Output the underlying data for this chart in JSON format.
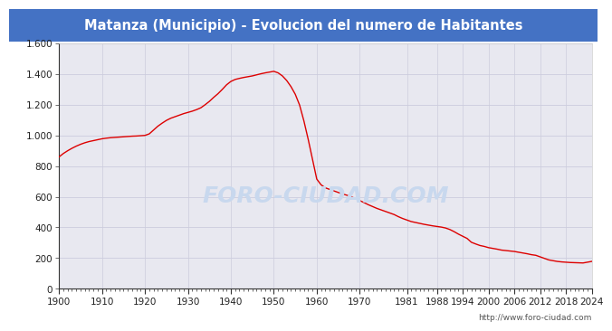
{
  "title": "Matanza (Municipio) - Evolucion del numero de Habitantes",
  "title_bg_color": "#4472c4",
  "title_text_color": "#ffffff",
  "plot_bg_color": "#e8e8f0",
  "line_color": "#dd0000",
  "footer_text": "http://www.foro-ciudad.com",
  "footer_color": "#555555",
  "watermark_text": "FORO-CIUDAD.COM",
  "watermark_color": "#c8d8ee",
  "years": [
    1900,
    1901,
    1902,
    1903,
    1904,
    1905,
    1906,
    1907,
    1908,
    1909,
    1910,
    1911,
    1912,
    1913,
    1914,
    1915,
    1916,
    1917,
    1918,
    1919,
    1920,
    1921,
    1922,
    1923,
    1924,
    1925,
    1926,
    1927,
    1928,
    1929,
    1930,
    1931,
    1932,
    1933,
    1934,
    1935,
    1936,
    1937,
    1938,
    1939,
    1940,
    1941,
    1942,
    1943,
    1944,
    1945,
    1946,
    1947,
    1948,
    1949,
    1950,
    1951,
    1952,
    1953,
    1954,
    1955,
    1956,
    1957,
    1958,
    1959,
    1960,
    1961,
    1962,
    1963,
    1964,
    1965,
    1966,
    1967,
    1968,
    1969,
    1970,
    1971,
    1972,
    1973,
    1974,
    1975,
    1976,
    1977,
    1978,
    1979,
    1980,
    1981,
    1982,
    1983,
    1984,
    1985,
    1986,
    1987,
    1988,
    1989,
    1990,
    1991,
    1992,
    1993,
    1994,
    1995,
    1996,
    1997,
    1998,
    1999,
    2000,
    2001,
    2002,
    2003,
    2004,
    2005,
    2006,
    2007,
    2008,
    2009,
    2010,
    2011,
    2012,
    2013,
    2014,
    2015,
    2016,
    2017,
    2018,
    2019,
    2020,
    2021,
    2022,
    2023,
    2024
  ],
  "population": [
    860,
    882,
    900,
    916,
    930,
    942,
    952,
    960,
    966,
    972,
    978,
    982,
    985,
    987,
    989,
    991,
    993,
    995,
    996,
    998,
    1000,
    1010,
    1035,
    1060,
    1080,
    1098,
    1112,
    1122,
    1132,
    1142,
    1150,
    1158,
    1168,
    1180,
    1200,
    1222,
    1248,
    1272,
    1300,
    1330,
    1352,
    1365,
    1372,
    1378,
    1383,
    1388,
    1395,
    1402,
    1408,
    1413,
    1418,
    1408,
    1388,
    1358,
    1318,
    1268,
    1198,
    1095,
    975,
    845,
    715,
    678,
    658,
    648,
    638,
    628,
    618,
    610,
    600,
    588,
    575,
    562,
    548,
    536,
    524,
    514,
    504,
    494,
    484,
    470,
    458,
    448,
    438,
    432,
    426,
    420,
    415,
    410,
    406,
    402,
    396,
    386,
    372,
    356,
    342,
    328,
    303,
    292,
    282,
    276,
    268,
    263,
    258,
    252,
    249,
    246,
    243,
    238,
    233,
    228,
    222,
    218,
    208,
    198,
    188,
    183,
    178,
    175,
    173,
    171,
    170,
    169,
    168,
    173,
    178
  ],
  "yticks": [
    0,
    200,
    400,
    600,
    800,
    1000,
    1200,
    1400,
    1600
  ],
  "ytick_labels": [
    "0",
    "200",
    "400",
    "600",
    "800",
    "1.000",
    "1.200",
    "1.400",
    "1.600"
  ],
  "xtick_years": [
    1900,
    1910,
    1920,
    1930,
    1940,
    1950,
    1960,
    1970,
    1981,
    1988,
    1994,
    2000,
    2006,
    2012,
    2018,
    2024
  ],
  "ylim": [
    0,
    1600
  ],
  "xlim": [
    1900,
    2024
  ],
  "hgrid_color": "#ccccdd",
  "vgrid_color": "#ccccdd"
}
